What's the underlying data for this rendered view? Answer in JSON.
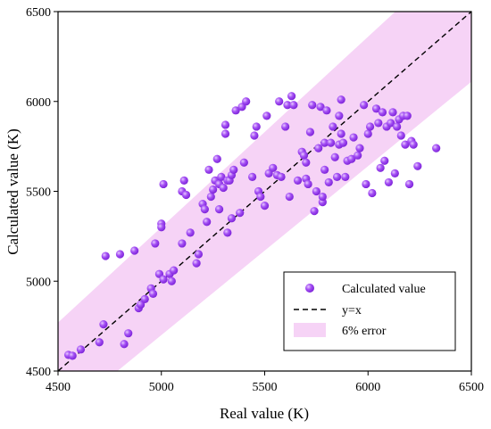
{
  "chart_data": {
    "type": "scatter",
    "title": "",
    "xlabel": "Real value (K)",
    "ylabel": "Calculated value (K)",
    "xlim": [
      4500,
      6500
    ],
    "ylim": [
      4500,
      6500
    ],
    "xticks": [
      4500,
      5000,
      5500,
      6000,
      6500
    ],
    "yticks": [
      4500,
      5000,
      5500,
      6000,
      6500
    ],
    "xtick_labels": [
      "4500",
      "5000",
      "5500",
      "6000",
      "6500"
    ],
    "ytick_labels": [
      "4500",
      "5000",
      "5500",
      "6000",
      "6500"
    ],
    "grid": false,
    "legend_position": "bottom-right",
    "band": {
      "name": "6% error",
      "relative_error": 0.06,
      "color": "#f6d3f6"
    },
    "reference_line": {
      "name": "y=x",
      "style": "dashed",
      "color": "#000000"
    },
    "series": [
      {
        "name": "Calculated value",
        "color": "#9a3cf0",
        "points": [
          [
            4550,
            4590
          ],
          [
            4570,
            4585
          ],
          [
            4610,
            4620
          ],
          [
            4700,
            4660
          ],
          [
            4720,
            4760
          ],
          [
            4730,
            5140
          ],
          [
            4800,
            5150
          ],
          [
            4820,
            4650
          ],
          [
            4840,
            4710
          ],
          [
            4870,
            5170
          ],
          [
            4890,
            4850
          ],
          [
            4900,
            4870
          ],
          [
            4920,
            4900
          ],
          [
            4950,
            4960
          ],
          [
            4960,
            4930
          ],
          [
            4970,
            5210
          ],
          [
            4990,
            5040
          ],
          [
            5000,
            5320
          ],
          [
            5000,
            5300
          ],
          [
            5010,
            5010
          ],
          [
            5010,
            5540
          ],
          [
            5040,
            5040
          ],
          [
            5050,
            5000
          ],
          [
            5060,
            5060
          ],
          [
            5100,
            5210
          ],
          [
            5100,
            5500
          ],
          [
            5110,
            5560
          ],
          [
            5120,
            5480
          ],
          [
            5140,
            5270
          ],
          [
            5170,
            5100
          ],
          [
            5180,
            5150
          ],
          [
            5200,
            5430
          ],
          [
            5210,
            5400
          ],
          [
            5220,
            5330
          ],
          [
            5230,
            5620
          ],
          [
            5240,
            5470
          ],
          [
            5250,
            5510
          ],
          [
            5260,
            5560
          ],
          [
            5270,
            5680
          ],
          [
            5280,
            5540
          ],
          [
            5280,
            5400
          ],
          [
            5290,
            5580
          ],
          [
            5300,
            5520
          ],
          [
            5310,
            5870
          ],
          [
            5310,
            5820
          ],
          [
            5320,
            5560
          ],
          [
            5320,
            5270
          ],
          [
            5330,
            5560
          ],
          [
            5340,
            5590
          ],
          [
            5340,
            5350
          ],
          [
            5350,
            5620
          ],
          [
            5360,
            5950
          ],
          [
            5380,
            5380
          ],
          [
            5390,
            5970
          ],
          [
            5400,
            5660
          ],
          [
            5410,
            6000
          ],
          [
            5440,
            5580
          ],
          [
            5450,
            5810
          ],
          [
            5460,
            5860
          ],
          [
            5470,
            5500
          ],
          [
            5480,
            5470
          ],
          [
            5500,
            5420
          ],
          [
            5510,
            5920
          ],
          [
            5520,
            5600
          ],
          [
            5540,
            5630
          ],
          [
            5560,
            5590
          ],
          [
            5570,
            6000
          ],
          [
            5580,
            5580
          ],
          [
            5600,
            5860
          ],
          [
            5610,
            5980
          ],
          [
            5620,
            5470
          ],
          [
            5630,
            6030
          ],
          [
            5640,
            5980
          ],
          [
            5660,
            5560
          ],
          [
            5680,
            5720
          ],
          [
            5690,
            5700
          ],
          [
            5700,
            5660
          ],
          [
            5700,
            5570
          ],
          [
            5710,
            5540
          ],
          [
            5720,
            5830
          ],
          [
            5730,
            5980
          ],
          [
            5740,
            5390
          ],
          [
            5750,
            5500
          ],
          [
            5760,
            5740
          ],
          [
            5770,
            5970
          ],
          [
            5780,
            5440
          ],
          [
            5780,
            5470
          ],
          [
            5790,
            5770
          ],
          [
            5790,
            5620
          ],
          [
            5800,
            5950
          ],
          [
            5810,
            5550
          ],
          [
            5820,
            5770
          ],
          [
            5830,
            5860
          ],
          [
            5840,
            5690
          ],
          [
            5850,
            5580
          ],
          [
            5860,
            5760
          ],
          [
            5860,
            5920
          ],
          [
            5870,
            6010
          ],
          [
            5870,
            5820
          ],
          [
            5880,
            5770
          ],
          [
            5890,
            5580
          ],
          [
            5900,
            5670
          ],
          [
            5920,
            5680
          ],
          [
            5930,
            5800
          ],
          [
            5950,
            5700
          ],
          [
            5960,
            5740
          ],
          [
            5980,
            5980
          ],
          [
            5990,
            5540
          ],
          [
            6000,
            5820
          ],
          [
            6010,
            5860
          ],
          [
            6020,
            5490
          ],
          [
            6040,
            5960
          ],
          [
            6050,
            5880
          ],
          [
            6060,
            5630
          ],
          [
            6070,
            5940
          ],
          [
            6080,
            5670
          ],
          [
            6090,
            5860
          ],
          [
            6100,
            5550
          ],
          [
            6110,
            5880
          ],
          [
            6120,
            5940
          ],
          [
            6130,
            5600
          ],
          [
            6140,
            5860
          ],
          [
            6150,
            5900
          ],
          [
            6160,
            5810
          ],
          [
            6170,
            5920
          ],
          [
            6180,
            5760
          ],
          [
            6190,
            5920
          ],
          [
            6200,
            5540
          ],
          [
            6210,
            5780
          ],
          [
            6220,
            5760
          ],
          [
            6240,
            5640
          ],
          [
            6330,
            5740
          ]
        ]
      }
    ]
  }
}
